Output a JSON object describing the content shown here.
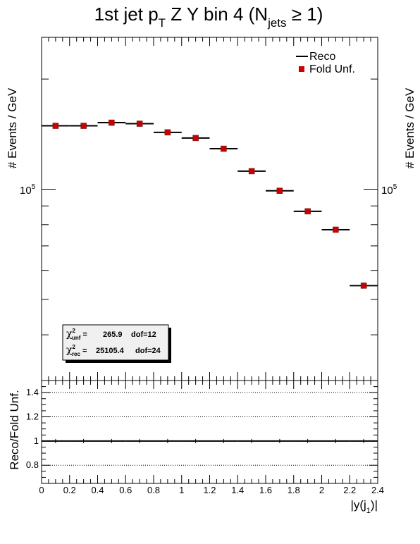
{
  "chart_data": {
    "type": "scatter",
    "title": {
      "main": "1st jet p",
      "main_sub": "T",
      "rest": " Z Y bin 4 (N",
      "rest_sub": "jets",
      "tail": " ≥ 1)"
    },
    "xlabel": {
      "main": "|y(j",
      "sub": "1",
      "tail": ")|"
    },
    "ylabel": "# Events / GeV",
    "ratio_ylabel": "Reco/Fold Unf.",
    "xlim": [
      0,
      2.4
    ],
    "ylog": true,
    "ylim": [
      30000,
      260000
    ],
    "y_tick_label": {
      "base": "10",
      "exp": "5"
    },
    "ratio_ylim": [
      0.65,
      1.5
    ],
    "ratio_ticks": [
      "0.8",
      "1",
      "1.2",
      "1.4"
    ],
    "ratio_gridlines": [
      0.8,
      1.0,
      1.2,
      1.4
    ],
    "x_ticks": [
      "0",
      "0.2",
      "0.4",
      "0.6",
      "0.8",
      "1",
      "1.2",
      "1.4",
      "1.6",
      "1.8",
      "2",
      "2.2",
      "2.4"
    ],
    "bin_edges": [
      0,
      0.2,
      0.4,
      0.6,
      0.8,
      1.0,
      1.2,
      1.4,
      1.6,
      1.8,
      2.0,
      2.2,
      2.4
    ],
    "series": [
      {
        "name": "Reco",
        "style": "line",
        "color": "#000000",
        "values": [
          149000,
          149000,
          152000,
          151000,
          143000,
          138000,
          129000,
          112000,
          99000,
          87000,
          77500,
          54500
        ]
      },
      {
        "name": "Fold Unf.",
        "style": "marker",
        "color": "#cc0000",
        "values": [
          149000,
          149000,
          152000,
          151000,
          143000,
          138000,
          129000,
          112000,
          99000,
          87000,
          77500,
          54500
        ]
      }
    ],
    "ratio_values": [
      1,
      1,
      1,
      1,
      1,
      1,
      1,
      1,
      1,
      1,
      1,
      1
    ],
    "legend_position": "top-right",
    "stats": {
      "unf": {
        "label": "χ",
        "sub": "unf",
        "sup": "2",
        "value": "265.9",
        "dof": "dof=12"
      },
      "rec": {
        "label": "χ",
        "sub": "rec",
        "sup": "2",
        "value": "25105.4",
        "dof": "dof=24"
      }
    }
  }
}
